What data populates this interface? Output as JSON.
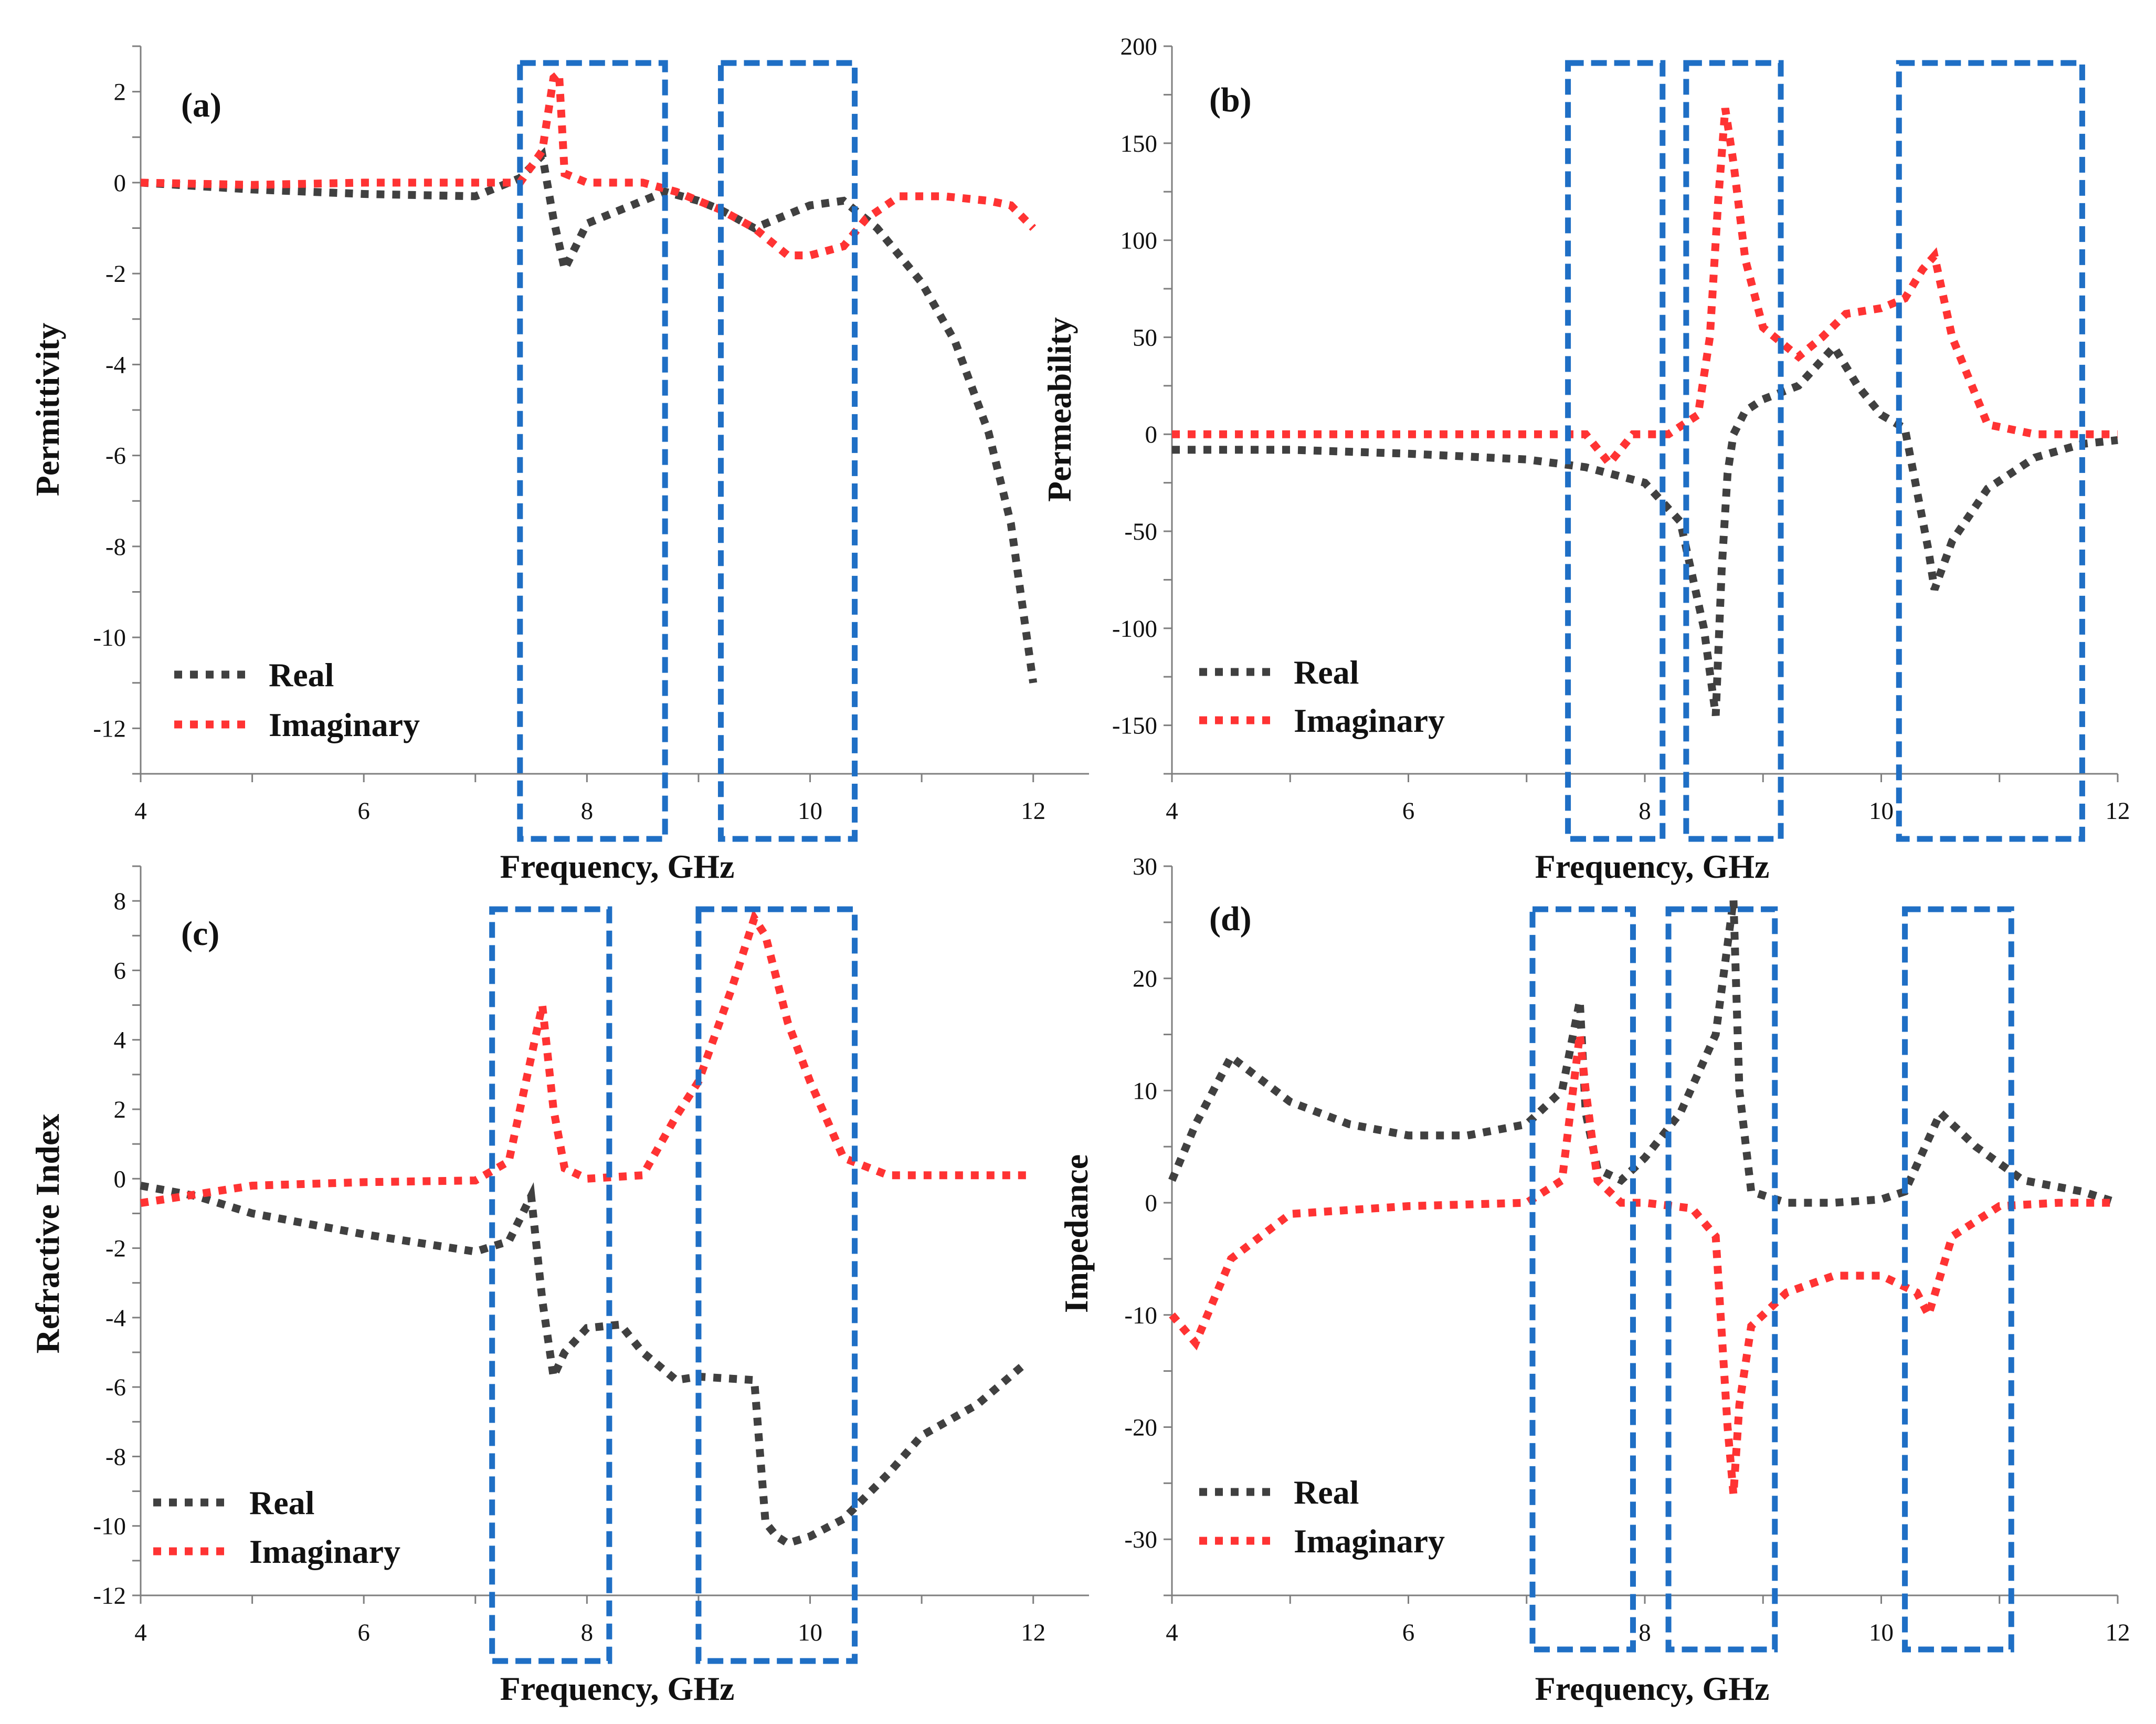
{
  "colors": {
    "real": "#404040",
    "imaginary": "#ff3333",
    "highlight_box": "#1f6fc5",
    "axis": "#7f7f7f"
  },
  "chart_data": [
    {
      "type": "line",
      "panel_label": "(a)",
      "title": "",
      "xlabel": "Frequency, GHz",
      "ylabel": "Permittivity",
      "xlim": [
        4,
        12.5
      ],
      "ylim": [
        -13,
        3
      ],
      "xticks": [
        4,
        6,
        8,
        10,
        12
      ],
      "yticks": [
        2,
        0,
        -2,
        -4,
        -6,
        -8,
        -10,
        -12
      ],
      "legend": [
        "Real",
        "Imaginary"
      ],
      "series": [
        {
          "name": "Real",
          "x": [
            4,
            5,
            6,
            7,
            7.4,
            7.6,
            7.7,
            7.8,
            8,
            8.4,
            8.7,
            9,
            9.2,
            9.5,
            9.7,
            10,
            10.3,
            10.6,
            11,
            11.3,
            11.6,
            11.8,
            12
          ],
          "y": [
            0,
            -0.15,
            -0.25,
            -0.3,
            0.1,
            0.6,
            -0.8,
            -1.9,
            -0.9,
            -0.5,
            -0.2,
            -0.4,
            -0.6,
            -1.0,
            -0.8,
            -0.5,
            -0.4,
            -1.0,
            -2.2,
            -3.5,
            -5.5,
            -7.5,
            -11
          ]
        },
        {
          "name": "Imaginary",
          "x": [
            4,
            5,
            6,
            7,
            7.4,
            7.6,
            7.7,
            7.75,
            7.8,
            8,
            8.5,
            8.8,
            9.2,
            9.5,
            9.8,
            10,
            10.3,
            10.5,
            10.8,
            11.2,
            11.6,
            11.8,
            12
          ],
          "y": [
            0,
            -0.05,
            0,
            0,
            0,
            0.7,
            2.3,
            2.4,
            0.2,
            0,
            0,
            -0.2,
            -0.6,
            -1.0,
            -1.6,
            -1.6,
            -1.4,
            -0.8,
            -0.3,
            -0.3,
            -0.4,
            -0.5,
            -1.0
          ]
        }
      ],
      "boxes": [
        {
          "x0": 7.4,
          "x1": 8.7
        },
        {
          "x0": 9.2,
          "x1": 10.4
        }
      ]
    },
    {
      "type": "line",
      "panel_label": "(b)",
      "title": "",
      "xlabel": "Frequency, GHz",
      "ylabel": "Permeability",
      "xlim": [
        4,
        12
      ],
      "ylim": [
        -175,
        200
      ],
      "xticks": [
        4,
        6,
        8,
        10,
        12
      ],
      "yticks": [
        200,
        150,
        100,
        50,
        0,
        -50,
        -100,
        -150
      ],
      "legend": [
        "Real",
        "Imaginary"
      ],
      "series": [
        {
          "name": "Real",
          "x": [
            4,
            5,
            6,
            7,
            7.5,
            8,
            8.3,
            8.5,
            8.6,
            8.65,
            8.7,
            8.75,
            8.85,
            9,
            9.3,
            9.6,
            9.8,
            10,
            10.2,
            10.4,
            10.45,
            10.6,
            10.9,
            11.3,
            11.7,
            12
          ],
          "y": [
            -8,
            -8,
            -10,
            -13,
            -17,
            -25,
            -45,
            -100,
            -145,
            -70,
            -20,
            0,
            12,
            18,
            25,
            45,
            25,
            10,
            3,
            -60,
            -80,
            -55,
            -28,
            -12,
            -5,
            -3
          ]
        },
        {
          "name": "Imaginary",
          "x": [
            4,
            5,
            6,
            7,
            7.5,
            7.7,
            7.9,
            8.2,
            8.45,
            8.55,
            8.62,
            8.68,
            8.75,
            8.85,
            9,
            9.3,
            9.5,
            9.7,
            10,
            10.2,
            10.35,
            10.45,
            10.6,
            10.9,
            11.3,
            11.7,
            12
          ],
          "y": [
            0,
            0,
            0,
            0,
            0,
            -15,
            0,
            0,
            10,
            50,
            120,
            168,
            140,
            90,
            55,
            40,
            50,
            62,
            65,
            70,
            85,
            92,
            50,
            5,
            0,
            0,
            0
          ]
        }
      ],
      "boxes": [
        {
          "x0": 7.35,
          "x1": 8.15
        },
        {
          "x0": 8.35,
          "x1": 9.15
        },
        {
          "x0": 10.15,
          "x1": 11.7
        }
      ]
    },
    {
      "type": "line",
      "panel_label": "(c)",
      "title": "",
      "xlabel": "Frequency, GHz",
      "ylabel": "Refractive Index",
      "xlim": [
        4,
        12.5
      ],
      "ylim": [
        -12,
        9
      ],
      "xticks": [
        4,
        6,
        8,
        10,
        12
      ],
      "yticks": [
        8,
        6,
        4,
        2,
        0,
        -2,
        -4,
        -6,
        -8,
        -10,
        -12
      ],
      "legend": [
        "Real",
        "Imaginary"
      ],
      "series": [
        {
          "name": "Real",
          "x": [
            4,
            4.5,
            5,
            6,
            7,
            7.3,
            7.5,
            7.6,
            7.7,
            7.8,
            8,
            8.3,
            8.5,
            8.8,
            9,
            9.5,
            9.6,
            9.7,
            9.8,
            10,
            10.3,
            10.7,
            11,
            11.5,
            11.9
          ],
          "y": [
            -0.2,
            -0.5,
            -1.0,
            -1.6,
            -2.1,
            -1.8,
            -0.5,
            -3.5,
            -5.7,
            -5.0,
            -4.3,
            -4.2,
            -5.0,
            -5.8,
            -5.7,
            -5.8,
            -9.9,
            -10.3,
            -10.5,
            -10.3,
            -9.8,
            -8.5,
            -7.4,
            -6.5,
            -5.4
          ]
        },
        {
          "name": "Imaginary",
          "x": [
            4,
            5,
            6,
            7,
            7.3,
            7.5,
            7.6,
            7.7,
            7.8,
            8,
            8.5,
            8.8,
            9,
            9.3,
            9.5,
            9.6,
            9.8,
            10,
            10.3,
            10.7,
            11,
            12
          ],
          "y": [
            -0.7,
            -0.2,
            -0.1,
            -0.05,
            0.5,
            3.5,
            5.0,
            2.0,
            0.3,
            0,
            0.1,
            1.8,
            2.8,
            5.5,
            7.5,
            7.0,
            4.5,
            2.8,
            0.6,
            0.1,
            0.1,
            0.1
          ]
        }
      ],
      "boxes": [
        {
          "x0": 7.15,
          "x1": 8.2
        },
        {
          "x0": 9.0,
          "x1": 10.4
        }
      ]
    },
    {
      "type": "line",
      "panel_label": "(d)",
      "title": "",
      "xlabel": "Frequency, GHz",
      "ylabel": "Impedance",
      "xlim": [
        4,
        12
      ],
      "ylim": [
        -35,
        30
      ],
      "xticks": [
        4,
        6,
        8,
        10,
        12
      ],
      "yticks": [
        30,
        20,
        10,
        0,
        -10,
        -20,
        -30
      ],
      "legend": [
        "Real",
        "Imaginary"
      ],
      "series": [
        {
          "name": "Real",
          "x": [
            4,
            4.2,
            4.5,
            5,
            5.5,
            6,
            6.5,
            7,
            7.3,
            7.45,
            7.5,
            7.6,
            7.8,
            8,
            8.3,
            8.6,
            8.75,
            8.8,
            8.9,
            9.2,
            9.6,
            10,
            10.2,
            10.5,
            10.8,
            11.2,
            11.7,
            12
          ],
          "y": [
            2,
            7,
            13,
            9,
            7,
            6,
            6,
            7,
            10,
            18,
            8,
            3,
            2,
            4,
            8,
            15,
            27,
            10,
            1,
            0,
            0,
            0.3,
            1,
            8,
            5,
            2,
            1,
            0
          ]
        },
        {
          "name": "Imaginary",
          "x": [
            4,
            4.2,
            4.5,
            5,
            6,
            7,
            7.3,
            7.45,
            7.5,
            7.6,
            7.8,
            8,
            8.4,
            8.6,
            8.7,
            8.75,
            8.8,
            8.9,
            9.2,
            9.6,
            10,
            10.3,
            10.4,
            10.6,
            11,
            11.5,
            12
          ],
          "y": [
            -10,
            -12.5,
            -5,
            -1,
            -0.3,
            0,
            2,
            15,
            10,
            2,
            0,
            0,
            -0.5,
            -3,
            -20,
            -26,
            -18,
            -11,
            -8,
            -6.5,
            -6.5,
            -8,
            -10,
            -3,
            -0.3,
            0,
            0
          ]
        }
      ],
      "boxes": [
        {
          "x0": 7.05,
          "x1": 7.9
        },
        {
          "x0": 8.2,
          "x1": 9.1
        },
        {
          "x0": 10.2,
          "x1": 11.1
        }
      ]
    }
  ]
}
